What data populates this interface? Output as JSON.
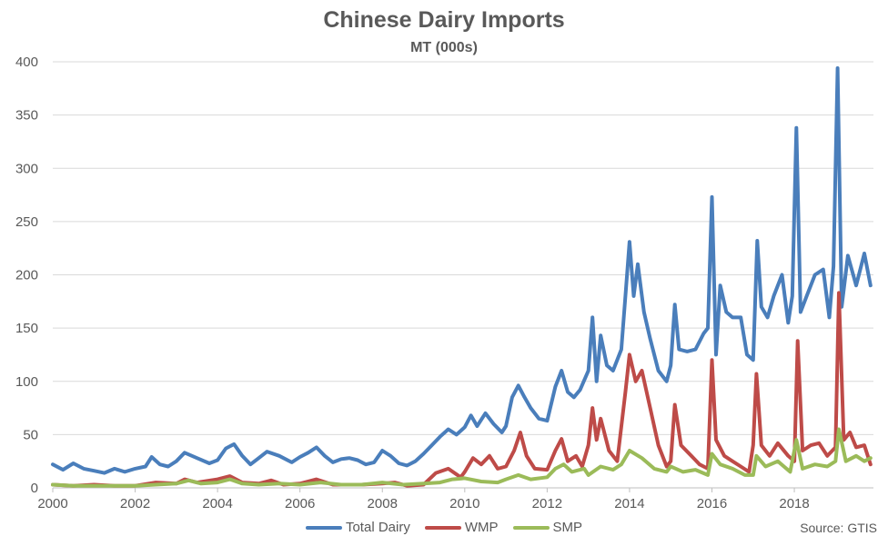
{
  "chart_data": {
    "type": "line",
    "title": "Chinese Dairy Imports",
    "subtitle": "MT (000s)",
    "source": "Source: GTIS",
    "xlabel": "",
    "ylabel": "",
    "xlim": [
      2000,
      2019.92
    ],
    "ylim": [
      0,
      400
    ],
    "xticks": [
      "2000",
      "2002",
      "2004",
      "2006",
      "2008",
      "2010",
      "2012",
      "2014",
      "2016",
      "2018"
    ],
    "yticks": [
      "0",
      "50",
      "100",
      "150",
      "200",
      "250",
      "300",
      "350",
      "400"
    ],
    "grid": true,
    "legend_position": "bottom",
    "series": [
      {
        "name": "Total Dairy",
        "color": "#4a7ebb",
        "points": [
          [
            2000,
            22
          ],
          [
            2000.25,
            17
          ],
          [
            2000.5,
            23
          ],
          [
            2000.75,
            18
          ],
          [
            2001,
            16
          ],
          [
            2001.25,
            14
          ],
          [
            2001.5,
            18
          ],
          [
            2001.75,
            15
          ],
          [
            2002,
            18
          ],
          [
            2002.25,
            20
          ],
          [
            2002.4,
            29
          ],
          [
            2002.6,
            22
          ],
          [
            2002.8,
            20
          ],
          [
            2003,
            25
          ],
          [
            2003.2,
            33
          ],
          [
            2003.5,
            28
          ],
          [
            2003.8,
            23
          ],
          [
            2004,
            26
          ],
          [
            2004.2,
            37
          ],
          [
            2004.4,
            41
          ],
          [
            2004.6,
            30
          ],
          [
            2004.8,
            22
          ],
          [
            2005,
            28
          ],
          [
            2005.2,
            34
          ],
          [
            2005.5,
            30
          ],
          [
            2005.8,
            24
          ],
          [
            2006,
            29
          ],
          [
            2006.2,
            33
          ],
          [
            2006.4,
            38
          ],
          [
            2006.6,
            30
          ],
          [
            2006.8,
            24
          ],
          [
            2007,
            27
          ],
          [
            2007.2,
            28
          ],
          [
            2007.4,
            26
          ],
          [
            2007.6,
            22
          ],
          [
            2007.8,
            24
          ],
          [
            2008,
            35
          ],
          [
            2008.2,
            30
          ],
          [
            2008.4,
            23
          ],
          [
            2008.6,
            21
          ],
          [
            2008.8,
            25
          ],
          [
            2009,
            32
          ],
          [
            2009.2,
            40
          ],
          [
            2009.4,
            48
          ],
          [
            2009.6,
            55
          ],
          [
            2009.8,
            50
          ],
          [
            2010,
            57
          ],
          [
            2010.15,
            68
          ],
          [
            2010.3,
            58
          ],
          [
            2010.5,
            70
          ],
          [
            2010.7,
            60
          ],
          [
            2010.9,
            52
          ],
          [
            2011,
            58
          ],
          [
            2011.15,
            85
          ],
          [
            2011.3,
            96
          ],
          [
            2011.45,
            85
          ],
          [
            2011.6,
            75
          ],
          [
            2011.8,
            65
          ],
          [
            2012,
            63
          ],
          [
            2012.2,
            95
          ],
          [
            2012.35,
            110
          ],
          [
            2012.5,
            90
          ],
          [
            2012.65,
            85
          ],
          [
            2012.8,
            92
          ],
          [
            2013,
            110
          ],
          [
            2013.1,
            160
          ],
          [
            2013.2,
            100
          ],
          [
            2013.3,
            143
          ],
          [
            2013.45,
            115
          ],
          [
            2013.6,
            110
          ],
          [
            2013.8,
            130
          ],
          [
            2013.9,
            180
          ],
          [
            2014,
            231
          ],
          [
            2014.1,
            180
          ],
          [
            2014.2,
            210
          ],
          [
            2014.35,
            165
          ],
          [
            2014.5,
            140
          ],
          [
            2014.7,
            110
          ],
          [
            2014.9,
            100
          ],
          [
            2015,
            115
          ],
          [
            2015.1,
            172
          ],
          [
            2015.2,
            130
          ],
          [
            2015.4,
            128
          ],
          [
            2015.6,
            130
          ],
          [
            2015.8,
            145
          ],
          [
            2015.9,
            150
          ],
          [
            2016,
            273
          ],
          [
            2016.1,
            125
          ],
          [
            2016.2,
            190
          ],
          [
            2016.35,
            165
          ],
          [
            2016.5,
            160
          ],
          [
            2016.7,
            160
          ],
          [
            2016.85,
            125
          ],
          [
            2017,
            120
          ],
          [
            2017.1,
            232
          ],
          [
            2017.2,
            170
          ],
          [
            2017.35,
            160
          ],
          [
            2017.5,
            180
          ],
          [
            2017.7,
            200
          ],
          [
            2017.85,
            155
          ],
          [
            2017.95,
            180
          ],
          [
            2018.05,
            338
          ],
          [
            2018.15,
            165
          ],
          [
            2018.3,
            180
          ],
          [
            2018.5,
            200
          ],
          [
            2018.7,
            205
          ],
          [
            2018.85,
            160
          ],
          [
            2018.95,
            208
          ],
          [
            2019.05,
            394
          ],
          [
            2019.15,
            170
          ],
          [
            2019.3,
            218
          ],
          [
            2019.5,
            190
          ],
          [
            2019.7,
            220
          ],
          [
            2019.85,
            190
          ]
        ]
      },
      {
        "name": "WMP",
        "color": "#be4b48",
        "points": [
          [
            2000,
            3
          ],
          [
            2000.5,
            2
          ],
          [
            2001,
            3
          ],
          [
            2001.5,
            2
          ],
          [
            2002,
            2
          ],
          [
            2002.5,
            5
          ],
          [
            2003,
            4
          ],
          [
            2003.2,
            8
          ],
          [
            2003.5,
            5
          ],
          [
            2004,
            8
          ],
          [
            2004.3,
            11
          ],
          [
            2004.6,
            5
          ],
          [
            2005,
            4
          ],
          [
            2005.3,
            7
          ],
          [
            2005.6,
            3
          ],
          [
            2006,
            4
          ],
          [
            2006.4,
            8
          ],
          [
            2006.8,
            3
          ],
          [
            2007,
            3
          ],
          [
            2007.5,
            3
          ],
          [
            2008,
            4
          ],
          [
            2008.3,
            5
          ],
          [
            2008.6,
            2
          ],
          [
            2009,
            3
          ],
          [
            2009.3,
            14
          ],
          [
            2009.6,
            18
          ],
          [
            2009.9,
            10
          ],
          [
            2010,
            15
          ],
          [
            2010.2,
            28
          ],
          [
            2010.4,
            22
          ],
          [
            2010.6,
            30
          ],
          [
            2010.8,
            18
          ],
          [
            2011,
            20
          ],
          [
            2011.2,
            35
          ],
          [
            2011.35,
            52
          ],
          [
            2011.5,
            30
          ],
          [
            2011.7,
            18
          ],
          [
            2012,
            17
          ],
          [
            2012.2,
            35
          ],
          [
            2012.35,
            46
          ],
          [
            2012.5,
            25
          ],
          [
            2012.7,
            30
          ],
          [
            2012.85,
            20
          ],
          [
            2013,
            40
          ],
          [
            2013.1,
            75
          ],
          [
            2013.2,
            45
          ],
          [
            2013.3,
            65
          ],
          [
            2013.5,
            35
          ],
          [
            2013.7,
            25
          ],
          [
            2013.9,
            90
          ],
          [
            2014,
            125
          ],
          [
            2014.15,
            100
          ],
          [
            2014.3,
            110
          ],
          [
            2014.5,
            75
          ],
          [
            2014.7,
            40
          ],
          [
            2014.9,
            20
          ],
          [
            2015,
            25
          ],
          [
            2015.1,
            78
          ],
          [
            2015.25,
            40
          ],
          [
            2015.5,
            30
          ],
          [
            2015.7,
            22
          ],
          [
            2015.9,
            18
          ],
          [
            2016,
            120
          ],
          [
            2016.1,
            45
          ],
          [
            2016.3,
            30
          ],
          [
            2016.5,
            25
          ],
          [
            2016.7,
            20
          ],
          [
            2016.9,
            15
          ],
          [
            2017,
            40
          ],
          [
            2017.08,
            107
          ],
          [
            2017.2,
            40
          ],
          [
            2017.4,
            30
          ],
          [
            2017.6,
            42
          ],
          [
            2017.85,
            30
          ],
          [
            2018,
            25
          ],
          [
            2018.08,
            138
          ],
          [
            2018.2,
            35
          ],
          [
            2018.4,
            40
          ],
          [
            2018.6,
            42
          ],
          [
            2018.8,
            30
          ],
          [
            2019,
            38
          ],
          [
            2019.08,
            183
          ],
          [
            2019.2,
            45
          ],
          [
            2019.35,
            52
          ],
          [
            2019.5,
            38
          ],
          [
            2019.7,
            40
          ],
          [
            2019.85,
            22
          ]
        ]
      },
      {
        "name": "SMP",
        "color": "#9bbb59",
        "points": [
          [
            2000,
            3
          ],
          [
            2000.5,
            2
          ],
          [
            2001,
            2
          ],
          [
            2001.5,
            2
          ],
          [
            2002,
            2
          ],
          [
            2002.5,
            3
          ],
          [
            2003,
            4
          ],
          [
            2003.3,
            7
          ],
          [
            2003.6,
            4
          ],
          [
            2004,
            5
          ],
          [
            2004.3,
            8
          ],
          [
            2004.6,
            4
          ],
          [
            2005,
            3
          ],
          [
            2005.5,
            4
          ],
          [
            2006,
            3
          ],
          [
            2006.5,
            5
          ],
          [
            2007,
            3
          ],
          [
            2007.5,
            3
          ],
          [
            2008,
            5
          ],
          [
            2008.5,
            3
          ],
          [
            2009,
            4
          ],
          [
            2009.4,
            5
          ],
          [
            2009.7,
            8
          ],
          [
            2010,
            9
          ],
          [
            2010.4,
            6
          ],
          [
            2010.8,
            5
          ],
          [
            2011,
            8
          ],
          [
            2011.3,
            12
          ],
          [
            2011.6,
            8
          ],
          [
            2012,
            10
          ],
          [
            2012.2,
            18
          ],
          [
            2012.4,
            22
          ],
          [
            2012.6,
            15
          ],
          [
            2012.9,
            18
          ],
          [
            2013,
            12
          ],
          [
            2013.3,
            20
          ],
          [
            2013.6,
            17
          ],
          [
            2013.8,
            22
          ],
          [
            2014,
            35
          ],
          [
            2014.3,
            28
          ],
          [
            2014.6,
            18
          ],
          [
            2014.9,
            15
          ],
          [
            2015,
            20
          ],
          [
            2015.3,
            15
          ],
          [
            2015.6,
            17
          ],
          [
            2015.9,
            12
          ],
          [
            2016,
            32
          ],
          [
            2016.2,
            22
          ],
          [
            2016.5,
            18
          ],
          [
            2016.8,
            12
          ],
          [
            2017,
            12
          ],
          [
            2017.08,
            30
          ],
          [
            2017.3,
            20
          ],
          [
            2017.6,
            25
          ],
          [
            2017.9,
            15
          ],
          [
            2018.05,
            45
          ],
          [
            2018.2,
            18
          ],
          [
            2018.5,
            22
          ],
          [
            2018.8,
            20
          ],
          [
            2019,
            25
          ],
          [
            2019.08,
            55
          ],
          [
            2019.25,
            25
          ],
          [
            2019.5,
            30
          ],
          [
            2019.7,
            25
          ],
          [
            2019.85,
            28
          ]
        ]
      }
    ]
  }
}
